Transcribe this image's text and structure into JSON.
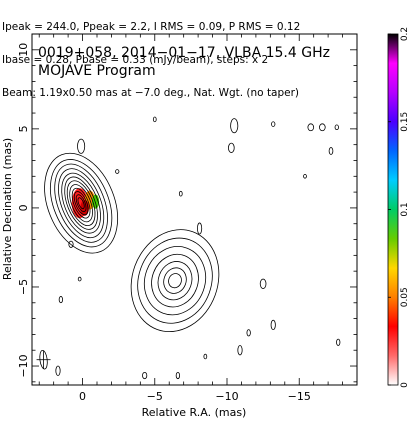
{
  "header": {
    "line1": "Ipeak = 244.0, Ppeak = 2.2, I RMS = 0.09, P RMS = 0.12",
    "line2": "Ibase = 0.28, Pbase = 0.33 (mJy/beam), steps: x 2",
    "line3": "Beam: 1.19x0.50 mas at −7.0 deg., Nat. Wgt. (no taper)"
  },
  "plot": {
    "title_line1": "0019+058, 2014−01−17, VLBA 15.4 GHz",
    "title_line2": "MOJAVE Program"
  },
  "chart_data": {
    "type": "contour",
    "xlabel": "Relative R.A. (mas)",
    "ylabel": "Relative Decination (mas)",
    "xlim": [
      3.5,
      -19.0
    ],
    "ylim": [
      -11.2,
      11.0
    ],
    "xticks": [
      0,
      -5,
      -10,
      -15
    ],
    "xtick_labels": [
      "0",
      "−5",
      "−10",
      "−15"
    ],
    "yticks": [
      10,
      5,
      0,
      -5,
      -10
    ],
    "ytick_labels": [
      "10",
      "5",
      "0",
      "−5",
      "−10"
    ],
    "colorbar": {
      "range": [
        0,
        0.2
      ],
      "ticks": [
        0,
        0.05,
        0.1,
        0.15,
        0.2
      ],
      "tick_labels": [
        "0",
        "0.05",
        "0.1",
        "0.15",
        "0.2"
      ],
      "colors": [
        "#ffffff",
        "#ff6a6a",
        "#ff0000",
        "#ff7f00",
        "#ffd700",
        "#66cc00",
        "#00cc66",
        "#00ccff",
        "#0066ff",
        "#4b00ff",
        "#b400ff",
        "#ff00ff",
        "#000000"
      ]
    },
    "components": [
      {
        "name": "core",
        "center": [
          0.1,
          0.3
        ],
        "orientation_deg": 68,
        "levels": [
          {
            "a": 2.3,
            "b": 3.3
          },
          {
            "a": 1.9,
            "b": 2.9
          },
          {
            "a": 1.6,
            "b": 2.6
          },
          {
            "a": 1.35,
            "b": 2.3
          },
          {
            "a": 1.15,
            "b": 2.0
          },
          {
            "a": 0.95,
            "b": 1.75
          },
          {
            "a": 0.8,
            "b": 1.5
          },
          {
            "a": 0.65,
            "b": 1.25
          },
          {
            "a": 0.5,
            "b": 1.0
          },
          {
            "a": 0.38,
            "b": 0.78
          },
          {
            "a": 0.27,
            "b": 0.57
          },
          {
            "a": 0.17,
            "b": 0.37
          }
        ],
        "polarization_patches": [
          {
            "center": [
              0.2,
              0.3
            ],
            "rx": 0.55,
            "ry": 0.95,
            "color": "#ff2020"
          },
          {
            "center": [
              -0.5,
              0.5
            ],
            "rx": 0.35,
            "ry": 0.6,
            "color": "#ff8c00"
          },
          {
            "center": [
              -0.9,
              0.4
            ],
            "rx": 0.25,
            "ry": 0.45,
            "color": "#44cc00"
          },
          {
            "center": [
              -0.15,
              0.0
            ],
            "rx": 0.3,
            "ry": 0.5,
            "color": "#cc0000"
          }
        ]
      },
      {
        "name": "jet-knot",
        "center": [
          -6.4,
          -4.6
        ],
        "orientation_deg": 20,
        "levels": [
          {
            "a": 3.6,
            "b": 2.7
          },
          {
            "a": 3.0,
            "b": 2.3
          },
          {
            "a": 2.4,
            "b": 1.9
          },
          {
            "a": 1.85,
            "b": 1.45
          },
          {
            "a": 1.35,
            "b": 1.05
          },
          {
            "a": 0.9,
            "b": 0.7
          },
          {
            "a": 0.5,
            "b": 0.4
          }
        ]
      }
    ],
    "noise_contours": [
      {
        "x": -10.5,
        "y": 5.2,
        "rx": 0.25,
        "ry": 0.45
      },
      {
        "x": -15.8,
        "y": 5.1,
        "rx": 0.2,
        "ry": 0.22
      },
      {
        "x": -16.6,
        "y": 5.1,
        "rx": 0.2,
        "ry": 0.22
      },
      {
        "x": -13.2,
        "y": 5.3,
        "rx": 0.12,
        "ry": 0.15
      },
      {
        "x": -17.6,
        "y": 5.1,
        "rx": 0.12,
        "ry": 0.15
      },
      {
        "x": -10.3,
        "y": 3.8,
        "rx": 0.2,
        "ry": 0.3
      },
      {
        "x": -17.2,
        "y": 3.6,
        "rx": 0.13,
        "ry": 0.22
      },
      {
        "x": -5.0,
        "y": 5.6,
        "rx": 0.1,
        "ry": 0.15
      },
      {
        "x": -6.8,
        "y": 0.9,
        "rx": 0.1,
        "ry": 0.15
      },
      {
        "x": -15.4,
        "y": 2.0,
        "rx": 0.1,
        "ry": 0.12
      },
      {
        "x": 0.1,
        "y": 3.9,
        "rx": 0.25,
        "ry": 0.45
      },
      {
        "x": 1.5,
        "y": -5.8,
        "rx": 0.12,
        "ry": 0.2
      },
      {
        "x": -8.1,
        "y": -1.3,
        "rx": 0.15,
        "ry": 0.35
      },
      {
        "x": -12.5,
        "y": -4.8,
        "rx": 0.2,
        "ry": 0.3
      },
      {
        "x": -13.2,
        "y": -7.4,
        "rx": 0.15,
        "ry": 0.3
      },
      {
        "x": -11.5,
        "y": -7.9,
        "rx": 0.12,
        "ry": 0.2
      },
      {
        "x": -10.9,
        "y": -9.0,
        "rx": 0.15,
        "ry": 0.3
      },
      {
        "x": -8.5,
        "y": -9.4,
        "rx": 0.1,
        "ry": 0.15
      },
      {
        "x": -17.7,
        "y": -8.5,
        "rx": 0.12,
        "ry": 0.2
      },
      {
        "x": 1.7,
        "y": -10.3,
        "rx": 0.15,
        "ry": 0.3
      },
      {
        "x": -4.3,
        "y": -10.6,
        "rx": 0.15,
        "ry": 0.2
      },
      {
        "x": -6.6,
        "y": -10.6,
        "rx": 0.12,
        "ry": 0.2
      },
      {
        "x": 0.8,
        "y": -2.3,
        "rx": 0.15,
        "ry": 0.2
      },
      {
        "x": -2.4,
        "y": 2.3,
        "rx": 0.12,
        "ry": 0.12
      },
      {
        "x": 0.2,
        "y": -4.5,
        "rx": 0.1,
        "ry": 0.12
      }
    ],
    "beam": {
      "center": [
        2.7,
        -9.6
      ],
      "major_mas": 1.19,
      "minor_mas": 0.5,
      "pa_deg": -7.0
    }
  }
}
